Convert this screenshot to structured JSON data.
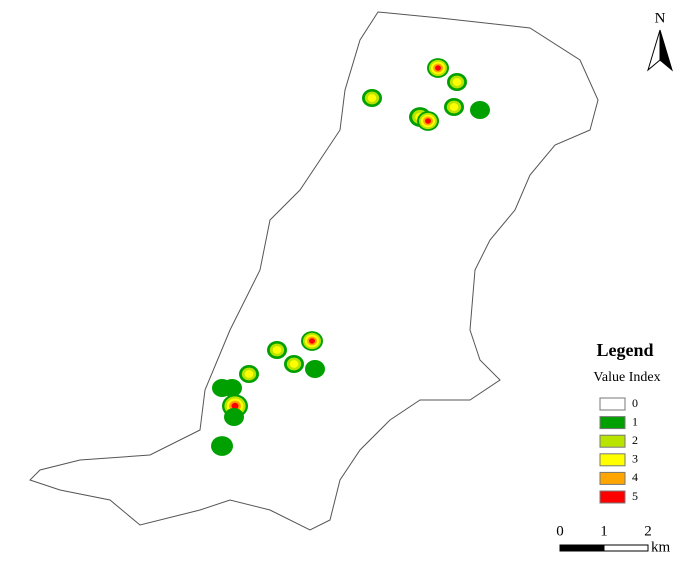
{
  "north_label": "N",
  "legend": {
    "title": "Legend",
    "subtitle": "Value Index",
    "items": [
      {
        "label": "0",
        "color": "#ffffff"
      },
      {
        "label": "1",
        "color": "#00a000"
      },
      {
        "label": "2",
        "color": "#b8e400"
      },
      {
        "label": "3",
        "color": "#ffff00"
      },
      {
        "label": "4",
        "color": "#ffa500"
      },
      {
        "label": "5",
        "color": "#ff0000"
      }
    ]
  },
  "scale_bar": {
    "ticks": [
      "0",
      "1",
      "2"
    ],
    "unit": "km"
  }
}
